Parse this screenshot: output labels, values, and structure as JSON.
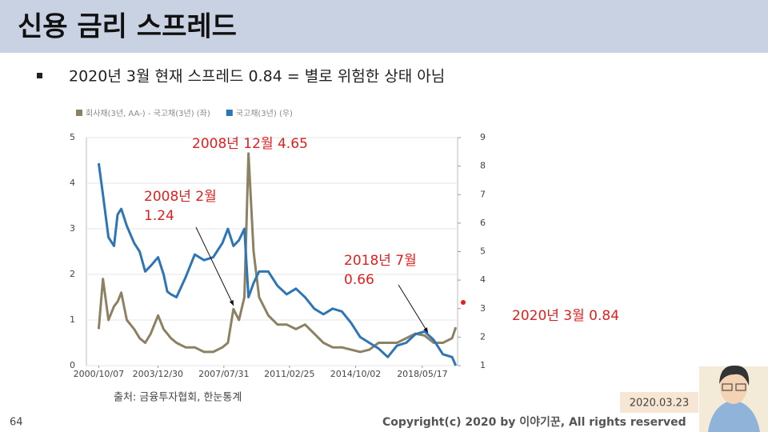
{
  "header": {
    "title": "신용 금리 스프레드"
  },
  "body": {
    "bullet": "2020년 3월 현재 스프레드 0.84 = 별로 위험한 상태 아님"
  },
  "chart_data": {
    "type": "line",
    "x": [
      2000.77,
      2001.0,
      2001.3,
      2001.6,
      2001.8,
      2002.0,
      2002.3,
      2002.5,
      2002.7,
      2003.0,
      2003.3,
      2003.6,
      2004.0,
      2004.3,
      2004.5,
      2004.7,
      2005.0,
      2005.5,
      2006.0,
      2006.5,
      2007.0,
      2007.5,
      2007.8,
      2008.1,
      2008.4,
      2008.7,
      2008.92,
      2009.2,
      2009.5,
      2010.0,
      2010.5,
      2011.0,
      2011.5,
      2012.0,
      2012.5,
      2013.0,
      2013.5,
      2014.0,
      2014.5,
      2015.0,
      2015.5,
      2016.0,
      2016.5,
      2017.0,
      2017.5,
      2018.0,
      2018.5,
      2019.0,
      2019.5,
      2020.0,
      2020.2
    ],
    "series": [
      {
        "name": "회사채(3년, AA-) - 국고채(3년) (좌)",
        "color": "#8c8163",
        "values": [
          0.8,
          1.9,
          1.0,
          1.3,
          1.4,
          1.6,
          1.0,
          0.9,
          0.8,
          0.6,
          0.5,
          0.7,
          1.1,
          0.8,
          0.7,
          0.6,
          0.5,
          0.4,
          0.4,
          0.3,
          0.3,
          0.4,
          0.5,
          1.24,
          1.0,
          1.5,
          4.65,
          2.5,
          1.5,
          1.1,
          0.9,
          0.9,
          0.8,
          0.9,
          0.7,
          0.5,
          0.4,
          0.4,
          0.35,
          0.3,
          0.35,
          0.5,
          0.5,
          0.5,
          0.6,
          0.7,
          0.66,
          0.5,
          0.5,
          0.6,
          0.84
        ]
      },
      {
        "name": "국고채(3년) (우)",
        "color": "#2e75b6",
        "axis": "y2",
        "values": [
          8.1,
          7.0,
          5.5,
          5.2,
          6.3,
          6.5,
          5.9,
          5.6,
          5.3,
          5.0,
          4.3,
          4.5,
          4.8,
          4.2,
          3.6,
          3.5,
          3.4,
          4.1,
          4.9,
          4.7,
          4.8,
          5.3,
          5.8,
          5.2,
          5.4,
          5.8,
          3.4,
          3.9,
          4.3,
          4.3,
          3.8,
          3.5,
          3.7,
          3.4,
          3.0,
          2.8,
          3.0,
          2.9,
          2.5,
          2.0,
          1.8,
          1.6,
          1.3,
          1.7,
          1.8,
          2.1,
          2.2,
          1.9,
          1.4,
          1.3,
          1.0
        ]
      }
    ],
    "xlim": [
      2000.1,
      2020.3
    ],
    "xticks": [
      {
        "value": 2000.77,
        "label": "2000/10/07"
      },
      {
        "value": 2003.99,
        "label": "2003/12/30"
      },
      {
        "value": 2007.58,
        "label": "2007/07/31"
      },
      {
        "value": 2011.15,
        "label": "2011/02/25"
      },
      {
        "value": 2014.75,
        "label": "2014/10/02"
      },
      {
        "value": 2018.38,
        "label": "2018/05/17"
      }
    ],
    "ylim": [
      0,
      5
    ],
    "yticks": [
      0,
      1,
      2,
      3,
      4,
      5
    ],
    "y2lim": [
      1,
      9
    ],
    "y2ticks": [
      1,
      2,
      3,
      4,
      5,
      6,
      7,
      8,
      9
    ],
    "grid": true,
    "annotations": [
      [
        "2008년 12월 4.65"
      ],
      [
        "2008년 2월",
        "1.24"
      ],
      [
        "2018년 7월",
        "0.66"
      ],
      [
        "2020년 3월 0.84"
      ]
    ]
  },
  "footer": {
    "source": "출처: 금융투자협회, 한눈통계",
    "page": "64",
    "copyright": "Copyright(c) 2020 by 이야기꾼, All rights reserved",
    "date": "2020.03.23"
  }
}
